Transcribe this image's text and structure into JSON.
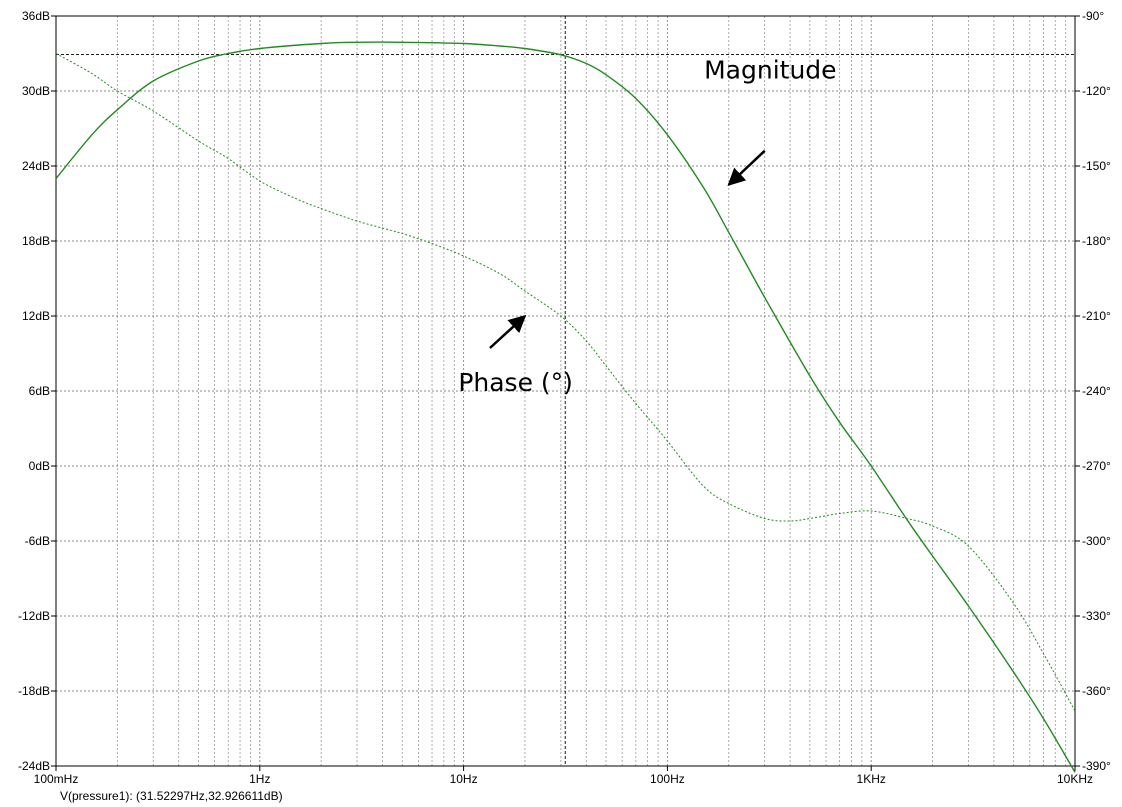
{
  "chart_data": {
    "type": "line",
    "x_scale": "log",
    "xlim": [
      0.1,
      10000
    ],
    "ylim": [
      -24,
      36
    ],
    "y2lim": [
      -390,
      -90
    ],
    "x_ticks": [
      {
        "value": 0.1,
        "label": "100mHz"
      },
      {
        "value": 1,
        "label": "1Hz"
      },
      {
        "value": 10,
        "label": "10Hz"
      },
      {
        "value": 100,
        "label": "100Hz"
      },
      {
        "value": 1000,
        "label": "1KHz"
      },
      {
        "value": 10000,
        "label": "10KHz"
      }
    ],
    "y_ticks": [
      {
        "value": 36,
        "label": "36dB"
      },
      {
        "value": 30,
        "label": "30dB"
      },
      {
        "value": 24,
        "label": "24dB"
      },
      {
        "value": 18,
        "label": "18dB"
      },
      {
        "value": 12,
        "label": "12dB"
      },
      {
        "value": 6,
        "label": "6dB"
      },
      {
        "value": 0,
        "label": "0dB"
      },
      {
        "value": -6,
        "label": "-6dB"
      },
      {
        "value": -12,
        "label": "-12dB"
      },
      {
        "value": -18,
        "label": "-18dB"
      },
      {
        "value": -24,
        "label": "-24dB"
      }
    ],
    "y2_ticks": [
      {
        "value": -90,
        "label": "-90°"
      },
      {
        "value": -120,
        "label": "-120°"
      },
      {
        "value": -150,
        "label": "-150°"
      },
      {
        "value": -180,
        "label": "-180°"
      },
      {
        "value": -210,
        "label": "-210°"
      },
      {
        "value": -240,
        "label": "-240°"
      },
      {
        "value": -270,
        "label": "-270°"
      },
      {
        "value": -300,
        "label": "-300°"
      },
      {
        "value": -330,
        "label": "-330°"
      },
      {
        "value": -360,
        "label": "-360°"
      },
      {
        "value": -390,
        "label": "-390°"
      }
    ],
    "grid": true,
    "series": [
      {
        "style": "solid",
        "color": "#228b22",
        "axis": "left",
        "x": [
          0.1,
          0.15,
          0.2,
          0.3,
          0.5,
          0.7,
          1,
          2,
          3,
          5,
          10,
          15,
          20,
          30,
          40,
          50,
          70,
          100,
          150,
          200,
          300,
          500,
          700,
          1000,
          1500,
          2000,
          3000,
          5000,
          7000,
          10000
        ],
        "y": [
          23,
          26.5,
          28.5,
          30.8,
          32.4,
          33.0,
          33.4,
          33.8,
          33.9,
          33.9,
          33.8,
          33.6,
          33.4,
          32.9,
          32.2,
          31.3,
          29.4,
          26.5,
          22.3,
          18.7,
          13.5,
          7.2,
          3.5,
          0,
          -4.3,
          -7.2,
          -11.2,
          -16.5,
          -20.2,
          -24.5
        ]
      },
      {
        "style": "dashed",
        "color": "#228b22",
        "axis": "right",
        "x": [
          0.1,
          0.15,
          0.2,
          0.3,
          0.5,
          0.7,
          1,
          1.5,
          2,
          3,
          5,
          7,
          10,
          15,
          20,
          30,
          40,
          50,
          70,
          100,
          150,
          200,
          300,
          400,
          500,
          700,
          1000,
          1500,
          2000,
          3000,
          5000,
          7000,
          10000
        ],
        "y": [
          -105,
          -113,
          -120,
          -128,
          -140,
          -147,
          -156,
          -163,
          -167,
          -172,
          -177,
          -181,
          -186,
          -193,
          -200,
          -210,
          -220,
          -230,
          -245,
          -260,
          -278,
          -285,
          -291,
          -292,
          -291,
          -289,
          -288,
          -291,
          -294,
          -302,
          -325,
          -345,
          -368
        ]
      }
    ],
    "annotations": [
      {
        "text": "Magnitude",
        "x": 320,
        "y": 31,
        "arrow_to": {
          "x": 200,
          "y": 22.5
        }
      },
      {
        "text": "Phase (°)",
        "x": 18,
        "y": 6.0,
        "arrow_to": {
          "x": 20,
          "y": 12
        }
      }
    ],
    "cursor": {
      "x": 31.52297,
      "y": 32.926611
    }
  },
  "readout": "V(pressure1): (31.52297Hz,32.926611dB)"
}
